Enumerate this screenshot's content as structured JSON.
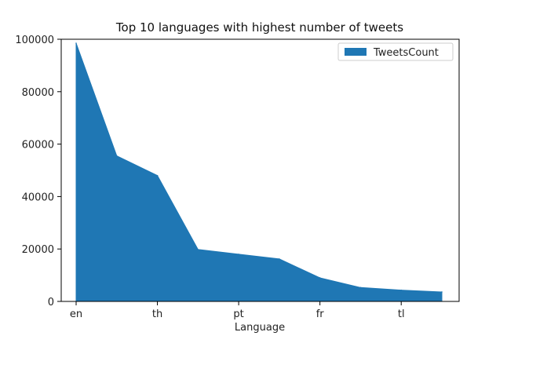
{
  "chart_data": {
    "type": "area",
    "title": "Top 10 languages with highest number of tweets",
    "xlabel": "Language",
    "ylabel": "",
    "categories": [
      "en",
      "",
      "th",
      "",
      "pt",
      "",
      "fr",
      "",
      "tl",
      ""
    ],
    "x_tick_labels": [
      "en",
      "th",
      "pt",
      "fr",
      "tl"
    ],
    "series": [
      {
        "name": "TweetsCount",
        "values": [
          98500,
          55500,
          48000,
          19800,
          18000,
          16200,
          9000,
          5300,
          4300,
          3600
        ]
      }
    ],
    "ylim": [
      0,
      100000
    ],
    "y_ticks": [
      0,
      20000,
      40000,
      60000,
      80000,
      100000
    ],
    "grid": false,
    "legend_position": "top-right",
    "colors": {
      "area": "#1f77b4",
      "axis": "#000000"
    }
  }
}
